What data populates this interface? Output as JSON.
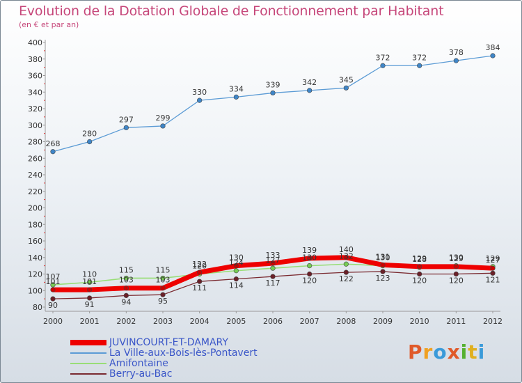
{
  "header": {
    "title": "Evolution de la Dotation Globale de Fonctionnement par Habitant",
    "subtitle": "(en € et par an)"
  },
  "logo": {
    "text": "Proxiti",
    "colors": [
      "#e05a2a",
      "#f0a020",
      "#3a9ad9",
      "#e05a2a",
      "#55b030",
      "#e0b020",
      "#3a9ad9"
    ]
  },
  "chart_data": {
    "type": "line",
    "x": [
      "2000",
      "2001",
      "2002",
      "2003",
      "2004",
      "2005",
      "2006",
      "2007",
      "2008",
      "2009",
      "2010",
      "2011",
      "2012"
    ],
    "ylim": [
      80,
      400
    ],
    "yticks": [
      80,
      100,
      120,
      140,
      160,
      180,
      200,
      220,
      240,
      260,
      280,
      300,
      320,
      340,
      360,
      380,
      400
    ],
    "grid": false,
    "legend_position": "bottom-left",
    "series": [
      {
        "name": "JUVINCOURT-ET-DAMARY",
        "color": "#ee0000",
        "values": [
          101,
          101,
          103,
          103,
          122,
          130,
          133,
          139,
          140,
          131,
          129,
          129,
          127
        ]
      },
      {
        "name": "La Ville-aux-Bois-lès-Pontavert",
        "color": "#5b9bd5",
        "values": [
          268,
          280,
          297,
          299,
          330,
          334,
          339,
          342,
          345,
          372,
          372,
          378,
          384
        ]
      },
      {
        "name": "Amifontaine",
        "color": "#99dd77",
        "values": [
          107,
          110,
          115,
          115,
          120,
          124,
          127,
          130,
          132,
          130,
          128,
          130,
          129
        ]
      },
      {
        "name": "Berry-au-Bac",
        "color": "#7a2a30",
        "values": [
          90,
          91,
          94,
          95,
          111,
          114,
          117,
          120,
          122,
          123,
          120,
          120,
          121
        ]
      }
    ]
  }
}
